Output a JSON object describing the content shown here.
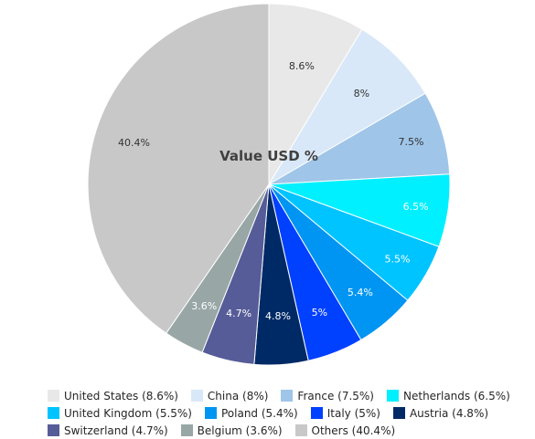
{
  "chart_data": {
    "type": "pie",
    "title": "Value USD %",
    "legend_position": "bottom",
    "slices": [
      {
        "name": "United States",
        "value": 8.6,
        "label": "8.6%",
        "legend": "United States (8.6%)",
        "color": "#e8e8e8",
        "label_color": "#333333"
      },
      {
        "name": "China",
        "value": 8,
        "label": "8%",
        "legend": "China (8%)",
        "color": "#d9e8f8",
        "label_color": "#333333"
      },
      {
        "name": "France",
        "value": 7.5,
        "label": "7.5%",
        "legend": "France (7.5%)",
        "color": "#9fc5e8",
        "label_color": "#333333"
      },
      {
        "name": "Netherlands",
        "value": 6.5,
        "label": "6.5%",
        "legend": "Netherlands (6.5%)",
        "color": "#00f0ff",
        "label_color": "#ffffff"
      },
      {
        "name": "United Kingdom",
        "value": 5.5,
        "label": "5.5%",
        "legend": "United Kingdom (5.5%)",
        "color": "#00c4ff",
        "label_color": "#ffffff"
      },
      {
        "name": "Poland",
        "value": 5.4,
        "label": "5.4%",
        "legend": "Poland (5.4%)",
        "color": "#0095f2",
        "label_color": "#ffffff"
      },
      {
        "name": "Italy",
        "value": 5,
        "label": "5%",
        "legend": "Italy (5%)",
        "color": "#0040ff",
        "label_color": "#ffffff"
      },
      {
        "name": "Austria",
        "value": 4.8,
        "label": "4.8%",
        "legend": "Austria (4.8%)",
        "color": "#002a66",
        "label_color": "#ffffff"
      },
      {
        "name": "Switzerland",
        "value": 4.7,
        "label": "4.7%",
        "legend": "Switzerland (4.7%)",
        "color": "#565c98",
        "label_color": "#ffffff"
      },
      {
        "name": "Belgium",
        "value": 3.6,
        "label": "3.6%",
        "legend": "Belgium (3.6%)",
        "color": "#98a6a6",
        "label_color": "#ffffff"
      },
      {
        "name": "Others",
        "value": 40.4,
        "label": "40.4%",
        "legend": "Others (40.4%)",
        "color": "#c8c8c8",
        "label_color": "#333333"
      }
    ],
    "legend_rows": [
      [
        0,
        1,
        2,
        3
      ],
      [
        4,
        5,
        6,
        7
      ],
      [
        8,
        9,
        10
      ]
    ]
  }
}
